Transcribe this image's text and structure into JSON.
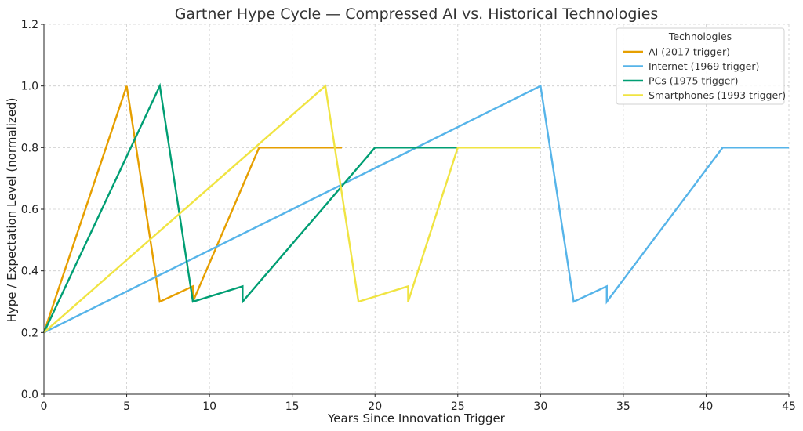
{
  "chart_data": {
    "type": "line",
    "title": "Gartner Hype Cycle — Compressed AI vs. Historical Technologies",
    "xlabel": "Years Since Innovation Trigger",
    "ylabel": "Hype / Expectation Level (normalized)",
    "xlim": [
      0,
      45
    ],
    "ylim": [
      0,
      1.2
    ],
    "xticks": [
      0,
      5,
      10,
      15,
      20,
      25,
      30,
      35,
      40,
      45
    ],
    "yticks": [
      0.0,
      0.2,
      0.4,
      0.6,
      0.8,
      1.0,
      1.2
    ],
    "ytick_labels": [
      "0.0",
      "0.2",
      "0.4",
      "0.6",
      "0.8",
      "1.0",
      "1.2"
    ],
    "grid": true,
    "legend": {
      "title": "Technologies",
      "placement": "top-right"
    },
    "series": [
      {
        "name": "AI (2017 trigger)",
        "color": "#E69F00",
        "x": [
          0,
          5,
          7,
          9,
          9,
          13,
          18
        ],
        "y": [
          0.2,
          1.0,
          0.3,
          0.35,
          0.3,
          0.8,
          0.8
        ]
      },
      {
        "name": "Internet (1969 trigger)",
        "color": "#56B4E9",
        "x": [
          0,
          30,
          32,
          34,
          34,
          41,
          45
        ],
        "y": [
          0.2,
          1.0,
          0.3,
          0.35,
          0.3,
          0.8,
          0.8
        ]
      },
      {
        "name": "PCs (1975 trigger)",
        "color": "#009E73",
        "x": [
          0,
          7,
          9,
          12,
          12,
          20,
          25
        ],
        "y": [
          0.2,
          1.0,
          0.3,
          0.35,
          0.3,
          0.8,
          0.8
        ]
      },
      {
        "name": "Smartphones (1993 trigger)",
        "color": "#F0E442",
        "x": [
          0,
          17,
          19,
          22,
          22,
          25,
          30
        ],
        "y": [
          0.2,
          1.0,
          0.3,
          0.35,
          0.3,
          0.8,
          0.8
        ]
      }
    ]
  }
}
